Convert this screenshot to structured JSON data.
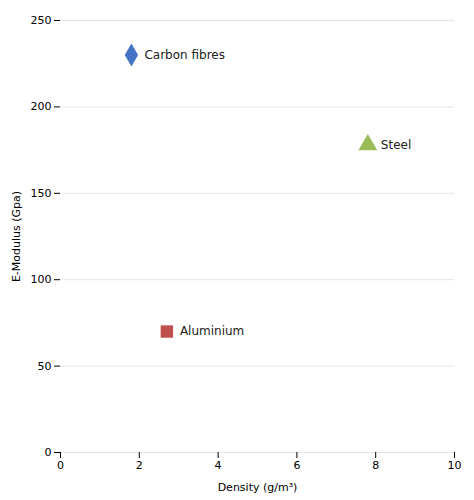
{
  "chart_data": {
    "type": "scatter",
    "xlabel": "Density (g/m³)",
    "ylabel": "E-Modulus (Gpa)",
    "xlim": [
      0,
      10
    ],
    "ylim": [
      0,
      250
    ],
    "xticks": [
      0,
      2,
      4,
      6,
      8,
      10
    ],
    "yticks": [
      0,
      50,
      100,
      150,
      200,
      250
    ],
    "grid": "y",
    "series": [
      {
        "name": "Carbon fibres",
        "color": "#4472C4",
        "marker": "diamond",
        "x": [
          1.8
        ],
        "values": [
          230
        ]
      },
      {
        "name": "Steel",
        "color": "#9BBB59",
        "marker": "triangle",
        "x": [
          7.8
        ],
        "values": [
          178
        ]
      },
      {
        "name": "Aluminium",
        "color": "#C0504D",
        "marker": "square",
        "x": [
          2.7
        ],
        "values": [
          70
        ]
      }
    ]
  }
}
